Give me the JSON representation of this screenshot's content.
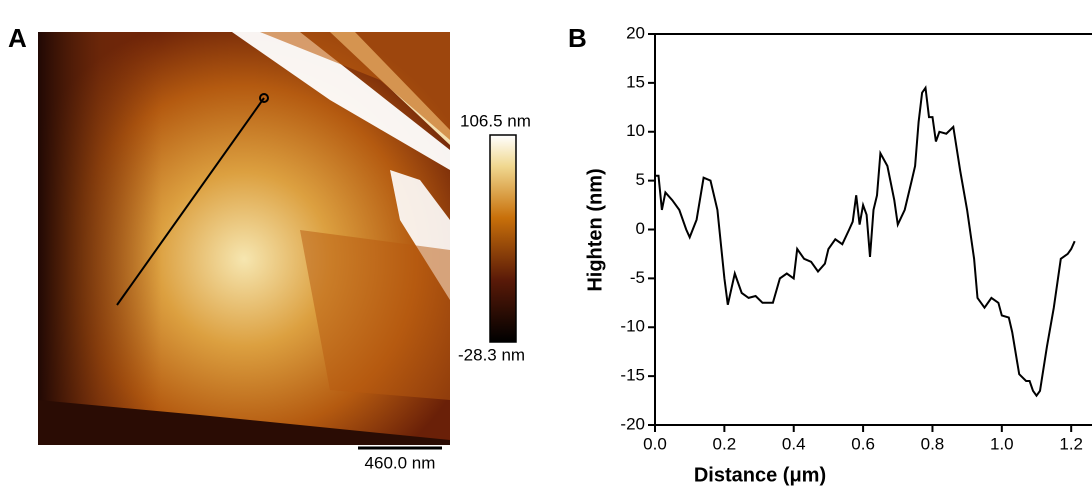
{
  "panel_a": {
    "label": "A",
    "colorbar_max": "106.5 nm",
    "colorbar_min": "-28.3 nm",
    "scale_bar": "460.0 nm"
  },
  "chart_data": {
    "type": "line",
    "panel_label": "B",
    "x_label": "Distance (μm)",
    "y_label": "Highten (nm)",
    "xlim": [
      0,
      1.26
    ],
    "ylim": [
      -20,
      20
    ],
    "xticks": [
      {
        "value": 0,
        "label": "0.0"
      },
      0.2,
      0.4,
      0.6,
      0.8,
      {
        "value": 1,
        "label": "1.0"
      },
      1.2
    ],
    "yticks": [
      -20,
      -15,
      -10,
      -5,
      0,
      5,
      10,
      15,
      20
    ],
    "series": [
      {
        "color": "#000000",
        "x": [
          0,
          0.01,
          0.02,
          0.03,
          0.05,
          0.07,
          0.09,
          0.1,
          0.12,
          0.14,
          0.16,
          0.18,
          0.2,
          0.21,
          0.23,
          0.25,
          0.27,
          0.29,
          0.31,
          0.34,
          0.36,
          0.38,
          0.4,
          0.41,
          0.43,
          0.45,
          0.47,
          0.49,
          0.5,
          0.52,
          0.54,
          0.56,
          0.57,
          0.58,
          0.59,
          0.6,
          0.61,
          0.62,
          0.63,
          0.64,
          0.65,
          0.67,
          0.69,
          0.7,
          0.72,
          0.74,
          0.75,
          0.76,
          0.77,
          0.78,
          0.79,
          0.8,
          0.81,
          0.82,
          0.84,
          0.86,
          0.88,
          0.9,
          0.92,
          0.93,
          0.95,
          0.97,
          0.99,
          1.0,
          1.02,
          1.03,
          1.05,
          1.07,
          1.08,
          1.09,
          1.1,
          1.11,
          1.13,
          1.15,
          1.17,
          1.19,
          1.2,
          1.21
        ],
        "values": [
          5.5,
          5.5,
          2,
          3.8,
          3,
          2,
          0,
          -0.8,
          1,
          5.3,
          5,
          2,
          -5,
          -7.7,
          -4.5,
          -6.5,
          -7,
          -6.8,
          -7.5,
          -7.5,
          -5,
          -4.5,
          -5,
          -2,
          -3,
          -3.3,
          -4.3,
          -3.5,
          -2,
          -1,
          -1.5,
          0,
          0.8,
          3.5,
          0.5,
          2.5,
          1.5,
          -2.8,
          2,
          3.5,
          7.8,
          6.5,
          3,
          0.5,
          2,
          5,
          6.5,
          11,
          14,
          14.5,
          11.5,
          11.5,
          9,
          10,
          9.8,
          10.5,
          6,
          2,
          -3,
          -7,
          -8,
          -7,
          -7.5,
          -8.8,
          -9,
          -10.5,
          -14.8,
          -15.5,
          -15.5,
          -16.5,
          -17,
          -16.5,
          -12,
          -8,
          -3,
          -2.5,
          -2,
          -1.2
        ]
      }
    ]
  }
}
